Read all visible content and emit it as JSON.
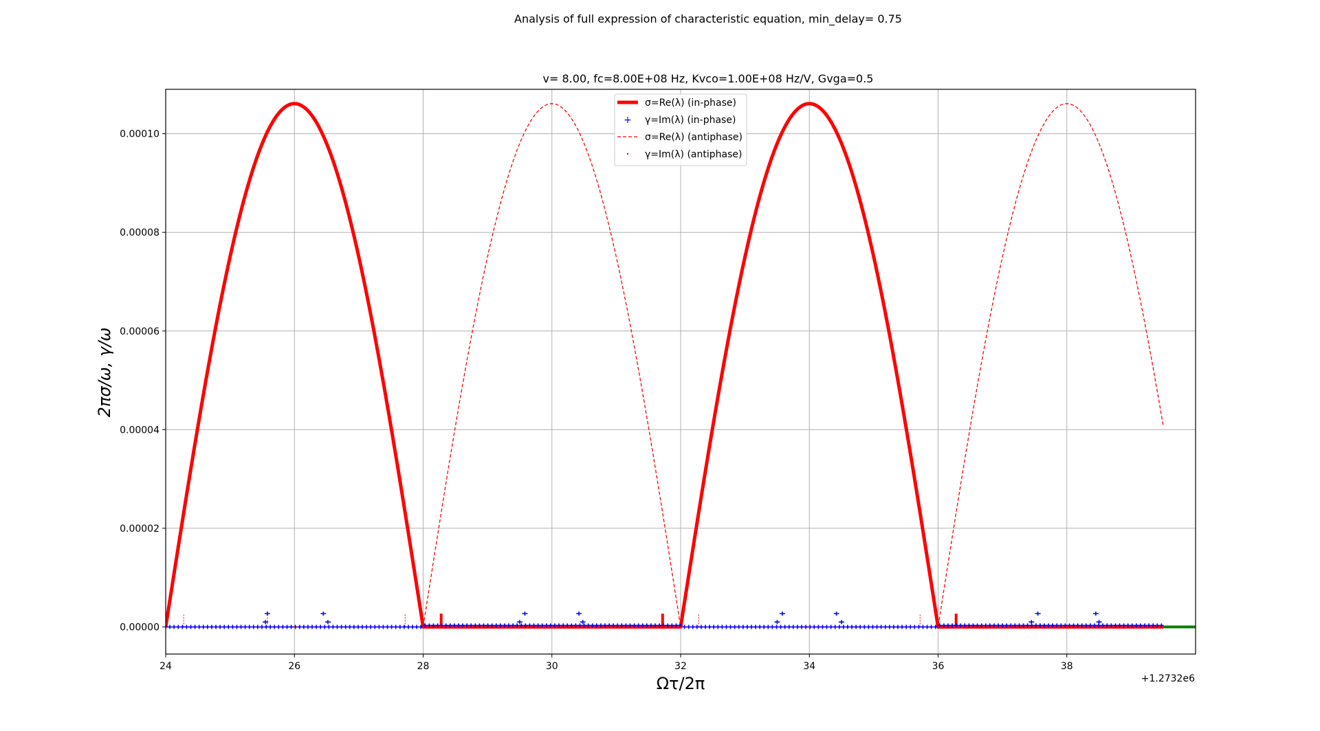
{
  "figure": {
    "suptitle": "Analysis of full expression of characteristic equation, min_delay= 0.75"
  },
  "chart_data": {
    "type": "line",
    "title": "v= 8.00, fc=8.00E+08 Hz, Kvco=1.00E+08 Hz/V, Gvga=0.5",
    "xlabel": "Ωτ/2π",
    "ylabel": "2πσ/ω, γ/ω",
    "x_offset_label": "+1.2732e6",
    "xlim": [
      24,
      40
    ],
    "ylim": [
      -5.5e-06,
      0.000109
    ],
    "x_ticks": [
      "24",
      "26",
      "28",
      "30",
      "32",
      "34",
      "36",
      "38"
    ],
    "x_tick_values": [
      24,
      26,
      28,
      30,
      32,
      34,
      36,
      38
    ],
    "y_ticks": [
      "0.00000",
      "0.00002",
      "0.00004",
      "0.00006",
      "0.00008",
      "0.00010"
    ],
    "y_tick_values": [
      0,
      2e-05,
      4e-05,
      6e-05,
      8e-05,
      0.0001
    ],
    "grid": true,
    "legend_position": "top-center",
    "series": [
      {
        "name": "σ=Re(λ) (in-phase)",
        "style": "thick-solid-line",
        "color": "#ff0000",
        "x": [
          24,
          24.5,
          25,
          25.5,
          26,
          26.5,
          27,
          27.5,
          28,
          28.5,
          29,
          29.5,
          30,
          30.5,
          31,
          31.5,
          32,
          32.5,
          33,
          33.5,
          34,
          34.5,
          35,
          35.5,
          36,
          36.5,
          37,
          37.5,
          38,
          38.5,
          39,
          39.5
        ],
        "values": [
          0,
          3e-05,
          7.49e-05,
          9.79e-05,
          0.0001061,
          9.79e-05,
          7.49e-05,
          3e-05,
          0,
          0,
          0,
          0,
          0,
          0,
          0,
          0,
          0,
          3e-05,
          7.49e-05,
          9.79e-05,
          0.0001061,
          9.79e-05,
          7.49e-05,
          3e-05,
          0,
          0,
          0,
          0,
          0,
          0,
          0,
          0
        ]
      },
      {
        "name": "γ=Im(λ) (in-phase)",
        "style": "plus-markers",
        "color": "#0000ff",
        "x": [
          24.0,
          24.5,
          25.0,
          25.5,
          26.0,
          26.5,
          27.0,
          27.5,
          28.0,
          28.5,
          29.0,
          29.5,
          30.0,
          30.5,
          31.0,
          31.5,
          32.0,
          32.5,
          33.0,
          33.5,
          34.0,
          34.5,
          35.0,
          35.5,
          36.0,
          36.5,
          37.0,
          37.5,
          38.0,
          38.5,
          39.0,
          39.5
        ],
        "values": [
          0,
          0,
          0,
          0,
          0,
          0,
          0,
          0,
          3e-07,
          3e-07,
          3e-07,
          3e-07,
          3e-07,
          3e-07,
          3e-07,
          3e-07,
          0,
          0,
          0,
          0,
          0,
          0,
          0,
          0,
          3e-07,
          3e-07,
          3e-07,
          3e-07,
          3e-07,
          3e-07,
          3e-07,
          3e-07
        ]
      },
      {
        "name": "σ=Re(λ) (antiphase)",
        "style": "thin-dashed-line",
        "color": "#ff0000",
        "x": [
          24,
          24.5,
          25,
          25.5,
          26,
          26.5,
          27,
          27.5,
          28,
          28.5,
          29,
          29.5,
          30,
          30.5,
          31,
          31.5,
          32,
          32.5,
          33,
          33.5,
          34,
          34.5,
          35,
          35.5,
          36,
          36.5,
          37,
          37.5,
          38,
          38.5,
          39,
          39.5
        ],
        "values": [
          0,
          0,
          0,
          0,
          0,
          0,
          0,
          0,
          0,
          3e-05,
          7.49e-05,
          9.79e-05,
          0.0001061,
          9.79e-05,
          7.49e-05,
          3e-05,
          0,
          0,
          0,
          0,
          0,
          0,
          0,
          0,
          0,
          3e-05,
          7.49e-05,
          9.79e-05,
          0.0001061,
          9.79e-05,
          7.49e-05,
          3.75e-05
        ]
      },
      {
        "name": "γ=Im(λ) (antiphase)",
        "style": "dot-markers",
        "color": "#ff0000",
        "x": [
          24.0,
          26.0,
          28.0,
          30.0,
          32.0,
          34.0,
          36.0,
          38.0,
          39.5
        ],
        "values": [
          0,
          0,
          0,
          0,
          0,
          0,
          0,
          0,
          0
        ]
      }
    ],
    "extra_line": {
      "color": "#008000",
      "x": [
        39.5,
        40
      ],
      "values": [
        0,
        0
      ]
    }
  }
}
